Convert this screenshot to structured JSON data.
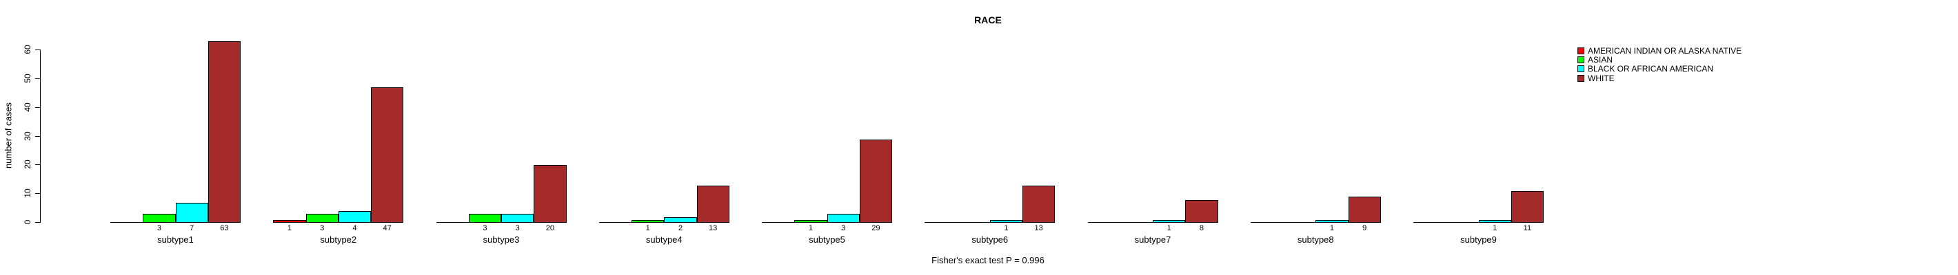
{
  "title": "RACE",
  "footer": "Fisher's exact test P = 0.996",
  "y_axis": {
    "label": "number of cases",
    "ticks": [
      0,
      10,
      20,
      30,
      40,
      50,
      60
    ]
  },
  "chart_data": {
    "type": "bar",
    "title": "RACE",
    "xlabel": "",
    "ylabel": "number of cases",
    "ylim": [
      0,
      65
    ],
    "yticks": [
      0,
      10,
      20,
      30,
      40,
      50,
      60
    ],
    "grid": false,
    "legend_position": "top-right",
    "annotation": "Fisher's exact test P = 0.996",
    "value_labels": "shown under each nonzero bar",
    "categories": [
      "subtype1",
      "subtype2",
      "subtype3",
      "subtype4",
      "subtype5",
      "subtype6",
      "subtype7",
      "subtype8",
      "subtype9"
    ],
    "series": [
      {
        "name": "AMERICAN INDIAN OR ALASKA NATIVE",
        "color": "#FF0000",
        "values": [
          0,
          1,
          0,
          0,
          0,
          0,
          0,
          0,
          0
        ]
      },
      {
        "name": "ASIAN",
        "color": "#00FF00",
        "values": [
          3,
          3,
          3,
          1,
          1,
          0,
          0,
          0,
          0
        ]
      },
      {
        "name": "BLACK OR AFRICAN AMERICAN",
        "color": "#00FFFF",
        "values": [
          7,
          4,
          3,
          2,
          3,
          1,
          1,
          1,
          1
        ]
      },
      {
        "name": "WHITE",
        "color": "#A52A2A",
        "values": [
          63,
          47,
          20,
          13,
          29,
          13,
          8,
          9,
          11
        ]
      }
    ]
  },
  "colors": {
    "axis": "#000000",
    "background": "#FFFFFF",
    "bar_border": "#000000"
  }
}
